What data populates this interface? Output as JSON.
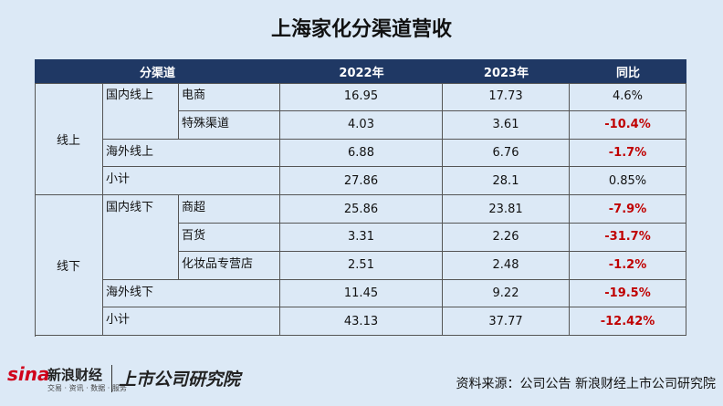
{
  "header": {
    "title": "上海家化分渠道营收"
  },
  "table": {
    "header": [
      "分渠道",
      "2022年",
      "2023年",
      "同比"
    ],
    "groups": [
      {
        "label": "线上",
        "rows": [
          {
            "channel": "国内线上",
            "sub": "电商",
            "values": [
              "16.95",
              "17.73",
              "4.6%"
            ]
          },
          {
            "sub": "特殊渠道",
            "values": [
              "4.03",
              "3.61",
              "-10.4%"
            ]
          },
          {
            "channel": "海外线上",
            "values": [
              "6.88",
              "6.76",
              "-1.7%"
            ]
          },
          {
            "channel": "小计",
            "values": [
              "27.86",
              "28.1",
              "0.85%"
            ]
          }
        ]
      },
      {
        "label": "线下",
        "rows": [
          {
            "channel": "国内线下",
            "sub": "商超",
            "values": [
              "25.86",
              "23.81",
              "-7.9%"
            ]
          },
          {
            "sub": "百货",
            "values": [
              "3.31",
              "2.26",
              "-31.7%"
            ]
          },
          {
            "sub": "化妆品专营店",
            "values": [
              "2.51",
              "2.48",
              "-1.2%"
            ]
          },
          {
            "channel": "海外线下",
            "values": [
              "11.45",
              "9.22",
              "-19.5%"
            ]
          },
          {
            "channel": "小计",
            "values": [
              "43.13",
              "37.77",
              "-12.42%"
            ]
          }
        ]
      }
    ]
  },
  "footer": {
    "logo_mark": "sina",
    "logo_name": "新浪财经",
    "logo_tagline": "交易 · 资讯 · 数据 · 服务",
    "institute": "上市公司研究院",
    "source": "资料来源：公司公告 新浪财经上市公司研究院"
  }
}
